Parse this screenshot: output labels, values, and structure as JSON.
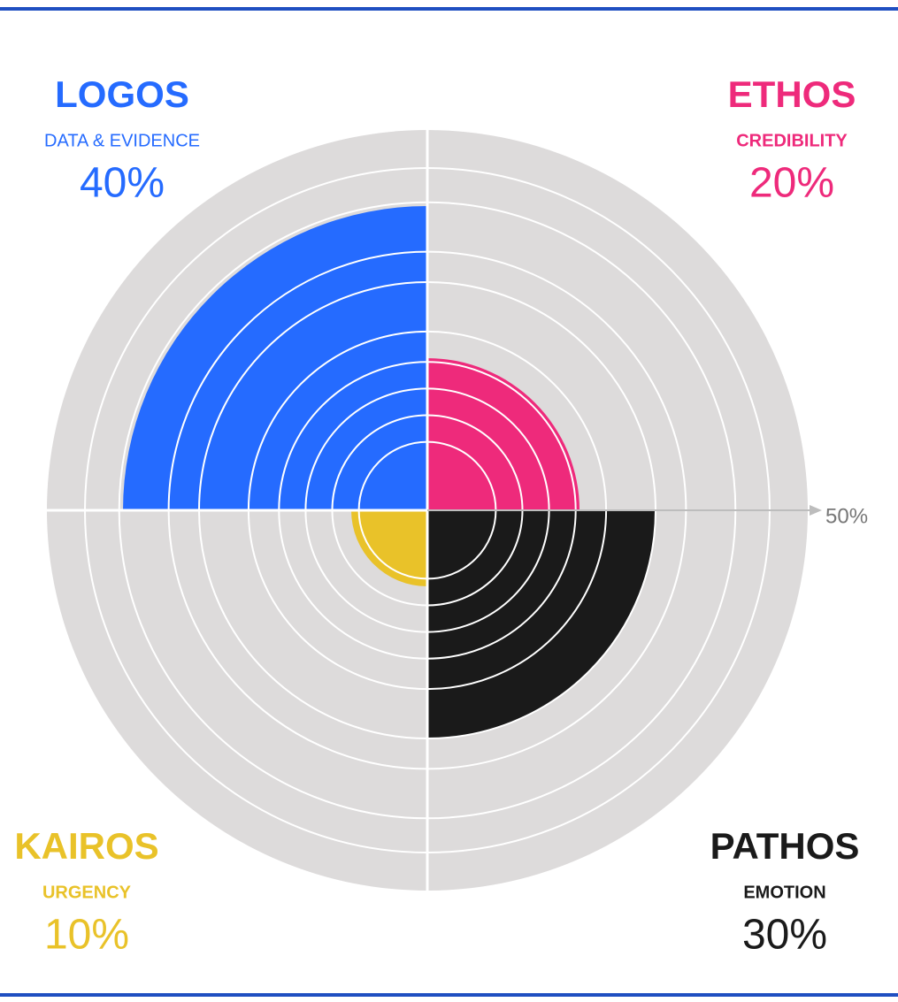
{
  "chart_data": {
    "type": "polar_area",
    "categories": [
      "LOGOS",
      "ETHOS",
      "PATHOS",
      "KAIROS"
    ],
    "subtitles": [
      "DATA & EVIDENCE",
      "CREDIBILITY",
      "EMOTION",
      "URGENCY"
    ],
    "values": [
      40,
      20,
      30,
      10
    ],
    "value_labels": [
      "40%",
      "20%",
      "30%",
      "10%"
    ],
    "colors": [
      "#256bff",
      "#ee2a7b",
      "#1a1a1a",
      "#e9c229"
    ],
    "rlim": [
      0,
      50
    ],
    "rticks": [
      {
        "value": 50,
        "label": "50%"
      }
    ]
  }
}
